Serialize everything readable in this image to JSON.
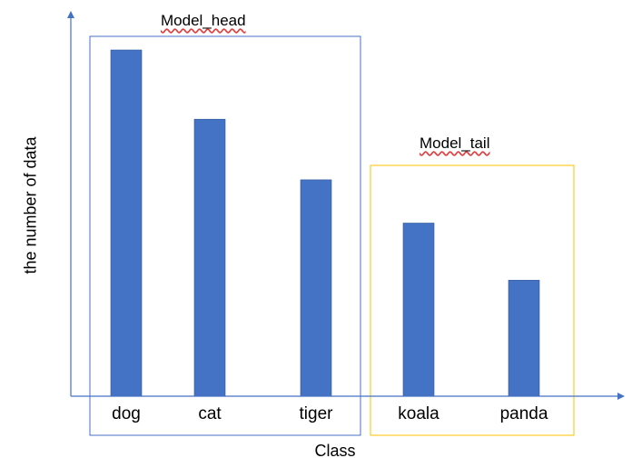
{
  "chart_data": {
    "type": "bar",
    "title": "",
    "xlabel": "Class",
    "ylabel": "the number of data",
    "categories": [
      "dog",
      "cat",
      "tiger",
      "koala",
      "panda"
    ],
    "values": [
      100,
      80,
      62.5,
      50,
      33.5
    ],
    "ylim": [
      0,
      100
    ],
    "grid": false,
    "bar_color": "#4472C4",
    "axis_color": "#4472C4",
    "groups": [
      {
        "label": "Model_head",
        "categories": [
          "dog",
          "cat",
          "tiger"
        ],
        "border_color": "#4472C4"
      },
      {
        "label": "Model_tail",
        "categories": [
          "koala",
          "panda"
        ],
        "border_color": "#FFC000"
      }
    ]
  }
}
